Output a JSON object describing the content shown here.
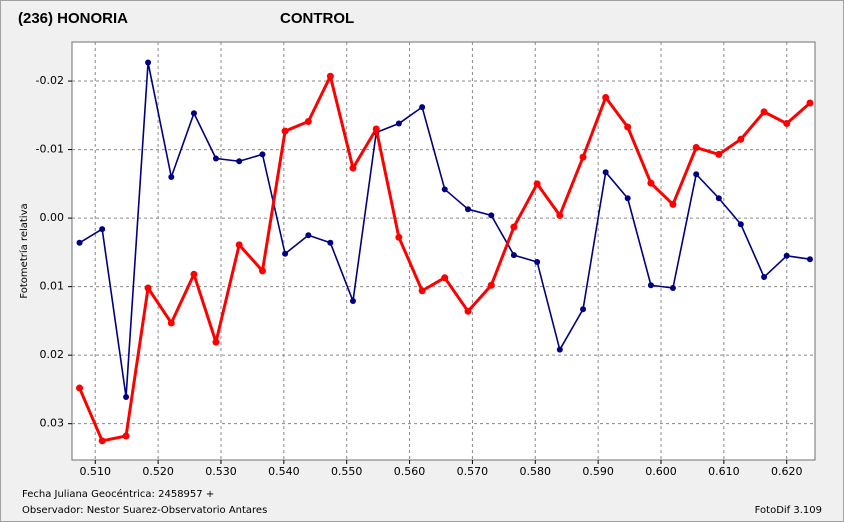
{
  "chart_data": {
    "type": "line",
    "x_label": "Fecha Juliana Geocéntrica: 2458957 +",
    "y_label": "Fotometría relativa",
    "observer": "Observador: Nestor Suarez-Observatorio Antares",
    "software": "FotoDif 3.109",
    "x": [
      0.5075,
      0.5111,
      0.5149,
      0.5184,
      0.5221,
      0.5257,
      0.5292,
      0.5329,
      0.5366,
      0.5402,
      0.5439,
      0.5474,
      0.551,
      0.5547,
      0.5583,
      0.562,
      0.5656,
      0.5693,
      0.573,
      0.5766,
      0.5803,
      0.5839,
      0.5876,
      0.5912,
      0.5947,
      0.5984,
      0.6019,
      0.6056,
      0.6092,
      0.6127,
      0.6164,
      0.62,
      0.6237
    ],
    "series": [
      {
        "name": "(236) HONORIA",
        "color": "#ff0000",
        "values": [
          0.0248,
          0.0325,
          0.0318,
          0.0102,
          0.0153,
          0.0082,
          0.0181,
          0.0039,
          0.0077,
          -0.0127,
          -0.0141,
          -0.0207,
          -0.0073,
          -0.013,
          0.0028,
          0.0106,
          0.0087,
          0.0136,
          0.0098,
          0.0013,
          -0.005,
          -0.0004,
          -0.0089,
          -0.0176,
          -0.0133,
          -0.0051,
          -0.002,
          -0.0103,
          -0.0093,
          -0.0115,
          -0.0155,
          -0.0138,
          -0.0168
        ]
      },
      {
        "name": "CONTROL",
        "color": "#000080",
        "values": [
          0.0036,
          0.0016,
          0.0261,
          -0.0227,
          -0.006,
          -0.0153,
          -0.0087,
          -0.0083,
          -0.0093,
          0.0052,
          0.0025,
          0.0036,
          0.0121,
          -0.0125,
          -0.0138,
          -0.0162,
          -0.0042,
          -0.0013,
          -0.0004,
          0.0054,
          0.0064,
          0.0192,
          0.0133,
          -0.0067,
          -0.0029,
          0.0098,
          0.0102,
          -0.0064,
          -0.0029,
          0.0009,
          0.0086,
          0.0055,
          0.006
        ]
      }
    ],
    "xlim": [
      0.5063,
      0.6245
    ],
    "xticks": [
      {
        "value": 0.51,
        "label": "0.510"
      },
      {
        "value": 0.52,
        "label": "0.520"
      },
      {
        "value": 0.53,
        "label": "0.530"
      },
      {
        "value": 0.54,
        "label": "0.540"
      },
      {
        "value": 0.55,
        "label": "0.550"
      },
      {
        "value": 0.56,
        "label": "0.560"
      },
      {
        "value": 0.57,
        "label": "0.570"
      },
      {
        "value": 0.58,
        "label": "0.580"
      },
      {
        "value": 0.59,
        "label": "0.590"
      },
      {
        "value": 0.6,
        "label": "0.600"
      },
      {
        "value": 0.61,
        "label": "0.610"
      },
      {
        "value": 0.62,
        "label": "0.620"
      }
    ],
    "ylim": [
      -0.0257,
      0.0353
    ],
    "y_inverted": true,
    "yticks": [
      -0.02,
      -0.01,
      {
        "value": 0,
        "label": "0.00"
      },
      0.01,
      0.02,
      0.03
    ],
    "grid": true
  }
}
